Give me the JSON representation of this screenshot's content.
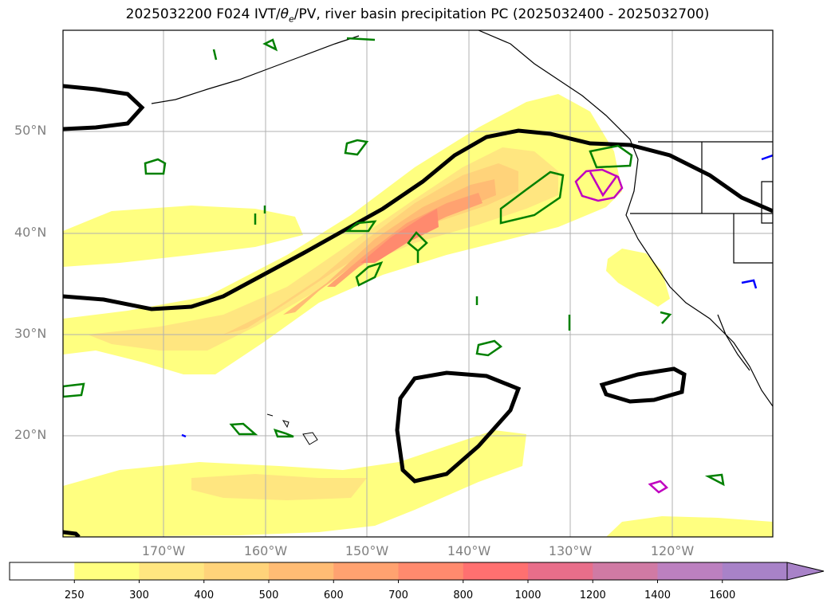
{
  "title_parts": {
    "prefix": "2025032200 F024 IVT/",
    "theta": "θ",
    "sub": "e",
    "suffix": "/PV, river basin precipitation PC (2025032400 - 2025032700)"
  },
  "map": {
    "lon_labels": [
      "170°W",
      "160°W",
      "150°W",
      "140°W",
      "130°W",
      "120°W"
    ],
    "lat_labels": [
      "50°N",
      "40°N",
      "30°N",
      "20°N"
    ],
    "grid": true,
    "colors": {
      "ivt_250": "#ffff80",
      "ivt_300": "#ffe680",
      "ivt_400": "#ffd37a",
      "ivt_500": "#ffbc74",
      "ivt_600": "#ffa270",
      "ivt_700": "#ff8a6e",
      "pv_contour": "#000000",
      "theta_e_contour": "#008000",
      "magenta_contour": "#c000c0",
      "blue_contour": "#0000ff",
      "coastline": "#000000"
    }
  },
  "colorbar": {
    "levels": [
      "250",
      "300",
      "400",
      "500",
      "600",
      "700",
      "800",
      "1000",
      "1200",
      "1400",
      "1600"
    ],
    "colors": [
      "#ffffff",
      "#ffff80",
      "#ffe680",
      "#ffd37a",
      "#ffbc74",
      "#ffa270",
      "#ff8a6e",
      "#ff7070",
      "#e86e8a",
      "#d07aa4",
      "#bc80c0",
      "#a882c8"
    ]
  }
}
